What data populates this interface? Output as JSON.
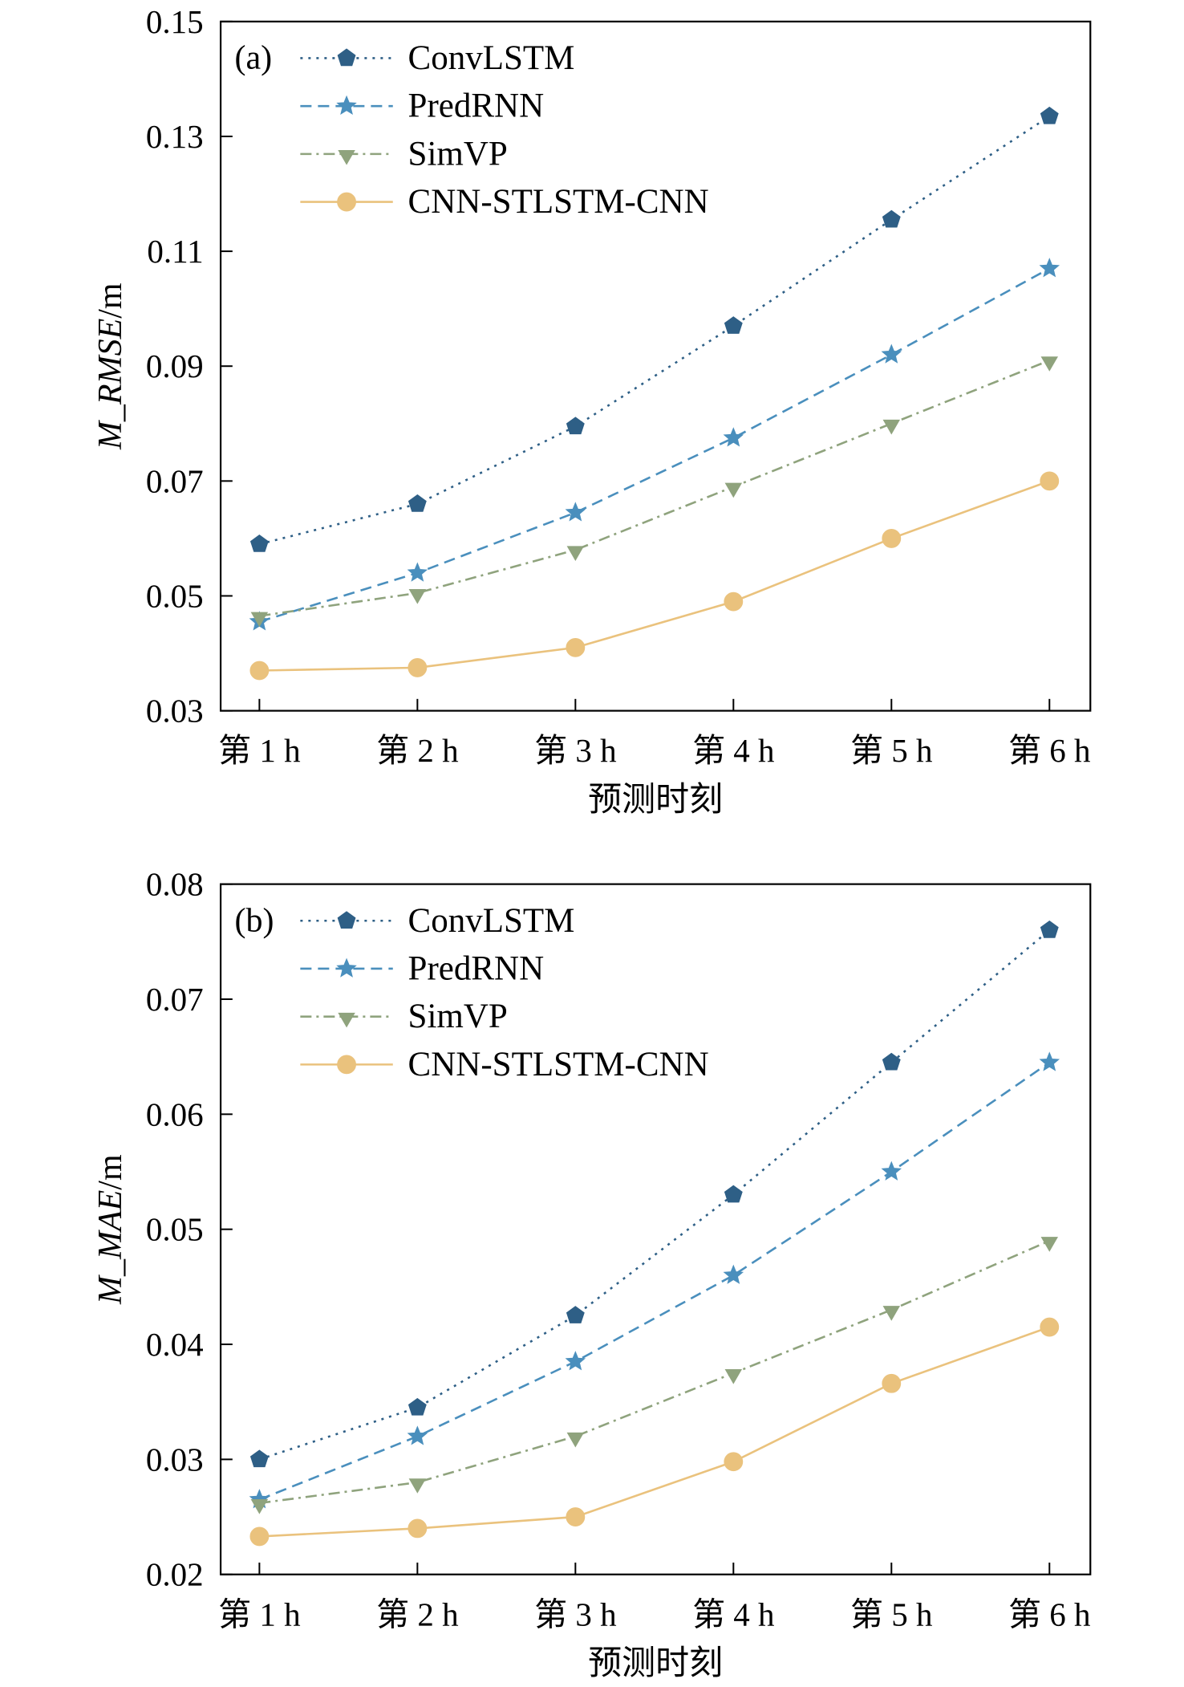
{
  "chart_data": [
    {
      "type": "line",
      "panel_label": "(a)",
      "categories": [
        "第 1 h",
        "第 2 h",
        "第 3 h",
        "第 4 h",
        "第 5 h",
        "第 6 h"
      ],
      "xlabel": "预测时刻",
      "ylabel_italic": "M_RMSE",
      "ylabel_unit": "/m",
      "ylim": [
        0.03,
        0.15
      ],
      "yticks": [
        "0.03",
        "0.05",
        "0.07",
        "0.09",
        "0.11",
        "0.13",
        "0.15"
      ],
      "grid": false,
      "legend": "top-left",
      "series": [
        {
          "name": "ConvLSTM",
          "values": [
            0.059,
            0.066,
            0.0795,
            0.097,
            0.1155,
            0.1335
          ],
          "color": "#2e5f86",
          "marker": "pentagon-icon",
          "dash": "dotted"
        },
        {
          "name": "PredRNN",
          "values": [
            0.0455,
            0.054,
            0.0645,
            0.0775,
            0.092,
            0.107
          ],
          "color": "#4a8fbd",
          "marker": "star-icon",
          "dash": "dashed"
        },
        {
          "name": "SimVP",
          "values": [
            0.0465,
            0.0505,
            0.058,
            0.069,
            0.08,
            0.091
          ],
          "color": "#8fa37d",
          "marker": "triangle-down-icon",
          "dash": "dashdot"
        },
        {
          "name": "CNN-STLSTM-CNN",
          "values": [
            0.037,
            0.0375,
            0.041,
            0.049,
            0.06,
            0.07
          ],
          "color": "#eac27d",
          "marker": "circle-icon",
          "dash": "solid"
        }
      ]
    },
    {
      "type": "line",
      "panel_label": "(b)",
      "categories": [
        "第 1 h",
        "第 2 h",
        "第 3 h",
        "第 4 h",
        "第 5 h",
        "第 6 h"
      ],
      "xlabel": "预测时刻",
      "ylabel_italic": "M_MAE",
      "ylabel_unit": "/m",
      "ylim": [
        0.02,
        0.08
      ],
      "yticks": [
        "0.02",
        "0.03",
        "0.04",
        "0.05",
        "0.06",
        "0.07",
        "0.08"
      ],
      "grid": false,
      "legend": "top-left",
      "series": [
        {
          "name": "ConvLSTM",
          "values": [
            0.03,
            0.0345,
            0.0425,
            0.053,
            0.0645,
            0.076
          ],
          "color": "#2e5f86",
          "marker": "pentagon-icon",
          "dash": "dotted"
        },
        {
          "name": "PredRNN",
          "values": [
            0.0265,
            0.032,
            0.0385,
            0.046,
            0.055,
            0.0645
          ],
          "color": "#4a8fbd",
          "marker": "star-icon",
          "dash": "dashed"
        },
        {
          "name": "SimVP",
          "values": [
            0.0262,
            0.028,
            0.032,
            0.0375,
            0.043,
            0.049
          ],
          "color": "#8fa37d",
          "marker": "triangle-down-icon",
          "dash": "dashdot"
        },
        {
          "name": "CNN-STLSTM-CNN",
          "values": [
            0.0233,
            0.024,
            0.025,
            0.0298,
            0.0366,
            0.0415
          ],
          "color": "#eac27d",
          "marker": "circle-icon",
          "dash": "solid"
        }
      ]
    }
  ]
}
